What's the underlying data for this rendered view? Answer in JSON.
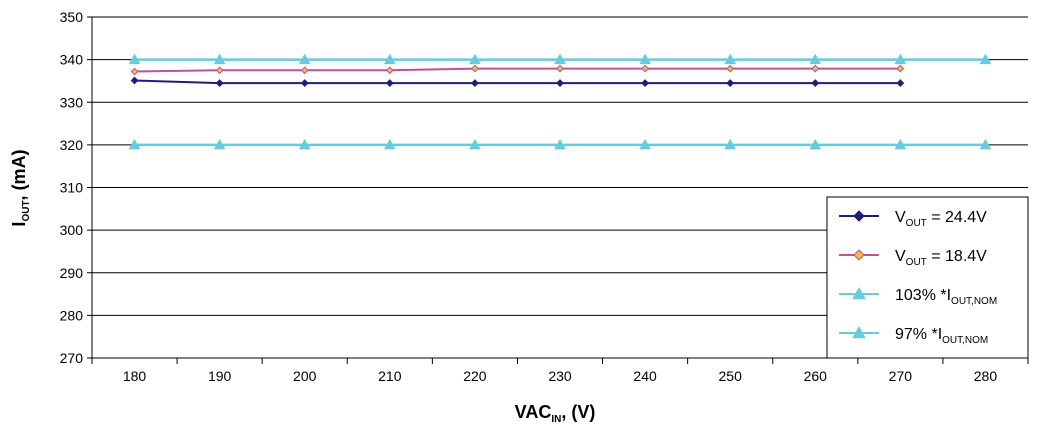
{
  "chart_data": {
    "type": "line",
    "x": [
      180,
      190,
      200,
      210,
      220,
      230,
      240,
      250,
      260,
      270,
      280
    ],
    "xlim": [
      175,
      285
    ],
    "ylim": [
      270,
      350
    ],
    "yticks": [
      270,
      280,
      290,
      300,
      310,
      320,
      330,
      340,
      350
    ],
    "xlabel": {
      "main": "VAC",
      "sub": "IN",
      "tail": ", (V)"
    },
    "ylabel": {
      "main": "I",
      "sub": "OUT",
      "tail": ", (mA)"
    },
    "grid": "horizontal",
    "legend_position": "bottom-right",
    "series": [
      {
        "name": {
          "pre": "V",
          "sub": "OUT",
          "post": " = 24.4V"
        },
        "color": "#1f1f7a",
        "marker": "diamond",
        "marker_fill": "#1f1f7a",
        "values": [
          335.1,
          334.5,
          334.5,
          334.5,
          334.5,
          334.5,
          334.5,
          334.5,
          334.5,
          334.5,
          null
        ]
      },
      {
        "name": {
          "pre": "V",
          "sub": "OUT",
          "post": " = 18.4V"
        },
        "color": "#c0509a",
        "marker": "diamond",
        "marker_fill": "#f0c040",
        "values": [
          337.2,
          337.5,
          337.5,
          337.5,
          337.9,
          337.9,
          337.9,
          337.9,
          337.9,
          337.9,
          null
        ]
      },
      {
        "name": {
          "pre": "103% *I",
          "sub": "OUT,NOM",
          "post": ""
        },
        "color": "#66ccdd",
        "marker": "triangle",
        "marker_fill": "#66ccdd",
        "values": [
          340,
          340,
          340,
          340,
          340,
          340,
          340,
          340,
          340,
          340,
          340
        ]
      },
      {
        "name": {
          "pre": "97% *I",
          "sub": "OUT,NOM",
          "post": ""
        },
        "color": "#66ccdd",
        "marker": "triangle",
        "marker_fill": "#66ccdd",
        "values": [
          320,
          320,
          320,
          320,
          320,
          320,
          320,
          320,
          320,
          320,
          320
        ]
      }
    ]
  }
}
